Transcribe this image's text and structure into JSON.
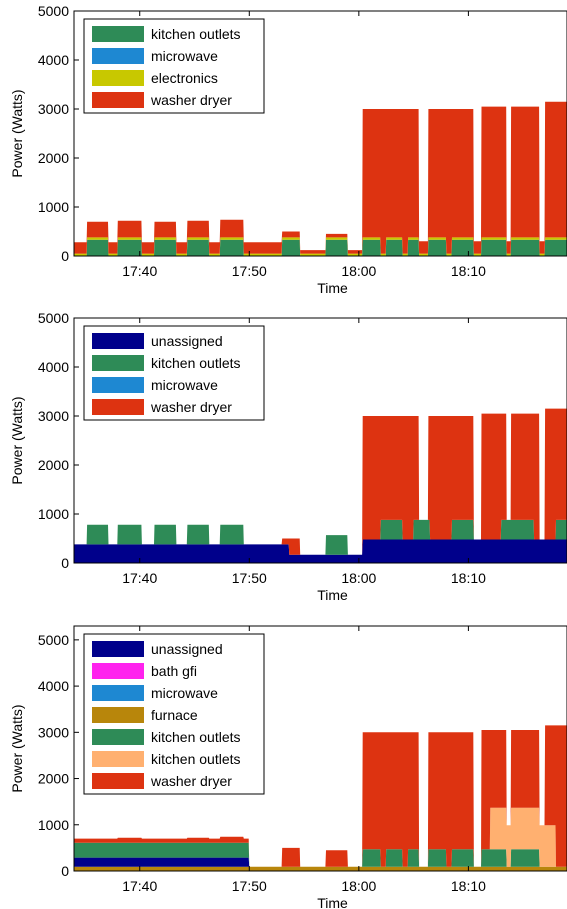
{
  "chart_data": [
    {
      "type": "area",
      "xlabel": "Time",
      "ylabel": "Power (Watts)",
      "ylim": [
        0,
        5000
      ],
      "yticks": [
        0,
        1000,
        2000,
        3000,
        4000,
        5000
      ],
      "xticks": [
        "17:40",
        "17:50",
        "18:00",
        "18:10"
      ],
      "stack_order": [
        "kitchen outlets",
        "microwave",
        "electronics",
        "washer dryer"
      ],
      "series": [
        {
          "name": "kitchen outlets",
          "color": "#2e8b57"
        },
        {
          "name": "microwave",
          "color": "#1e88d2"
        },
        {
          "name": "electronics",
          "color": "#c8c800"
        },
        {
          "name": "washer dryer",
          "color": "#dd3311"
        }
      ],
      "legend": [
        "kitchen outlets",
        "microwave",
        "electronics",
        "washer dryer"
      ],
      "legend_position": "top-left"
    },
    {
      "type": "area",
      "xlabel": "Time",
      "ylabel": "Power (Watts)",
      "ylim": [
        0,
        5000
      ],
      "yticks": [
        0,
        1000,
        2000,
        3000,
        4000,
        5000
      ],
      "xticks": [
        "17:40",
        "17:50",
        "18:00",
        "18:10"
      ],
      "stack_order": [
        "unassigned",
        "kitchen outlets",
        "microwave",
        "washer dryer"
      ],
      "series": [
        {
          "name": "unassigned",
          "color": "#00008b"
        },
        {
          "name": "kitchen outlets",
          "color": "#2e8b57"
        },
        {
          "name": "microwave",
          "color": "#1e88d2"
        },
        {
          "name": "washer dryer",
          "color": "#dd3311"
        }
      ],
      "legend": [
        "unassigned",
        "kitchen outlets",
        "microwave",
        "washer dryer"
      ],
      "legend_position": "top-left"
    },
    {
      "type": "area",
      "xlabel": "Time",
      "ylabel": "Power (Watts)",
      "ylim": [
        0,
        5300
      ],
      "yticks": [
        0,
        1000,
        2000,
        3000,
        4000,
        5000
      ],
      "xticks": [
        "17:40",
        "17:50",
        "18:00",
        "18:10"
      ],
      "stack_order": [
        "furnace",
        "unassigned",
        "bath gfi",
        "microwave",
        "kitchen outlets (1)",
        "kitchen outlets (2)",
        "washer dryer"
      ],
      "series": [
        {
          "name": "unassigned",
          "color": "#00008b"
        },
        {
          "name": "bath gfi",
          "color": "#ff22ee"
        },
        {
          "name": "microwave",
          "color": "#1e88d2"
        },
        {
          "name": "furnace",
          "color": "#b8860b"
        },
        {
          "name": "kitchen outlets",
          "color": "#2e8b57"
        },
        {
          "name": "kitchen outlets",
          "color": "#ffb070"
        },
        {
          "name": "washer dryer",
          "color": "#dd3311"
        }
      ],
      "legend": [
        "unassigned",
        "bath gfi",
        "microwave",
        "furnace",
        "kitchen outlets",
        "kitchen outlets",
        "washer dryer"
      ],
      "legend_position": "top-left"
    }
  ]
}
